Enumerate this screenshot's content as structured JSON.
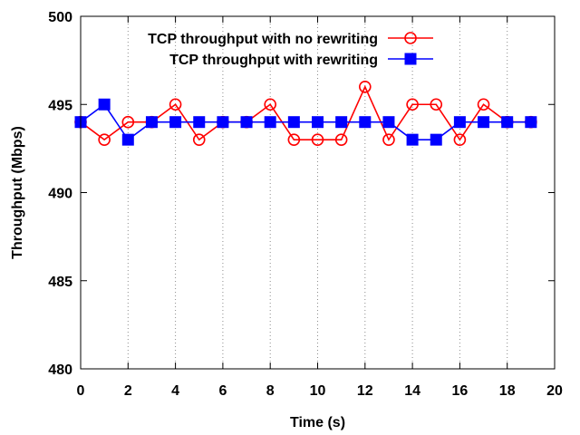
{
  "chart_data": {
    "type": "line",
    "title": "",
    "xlabel": "Time (s)",
    "ylabel": "Throughput (Mbps)",
    "xlim": [
      0,
      20
    ],
    "ylim": [
      480,
      500
    ],
    "xticks": [
      "0",
      "2",
      "4",
      "6",
      "8",
      "10",
      "12",
      "14",
      "16",
      "18",
      "20"
    ],
    "yticks": [
      "480",
      "485",
      "490",
      "495",
      "500"
    ],
    "grid": "vertical dotted",
    "legend_position": "top-right",
    "series": [
      {
        "name": "TCP throughput with no rewriting",
        "color": "#ff0000",
        "marker": "circle-open",
        "x": [
          0,
          1,
          2,
          3,
          4,
          5,
          6,
          7,
          8,
          9,
          10,
          11,
          12,
          13,
          14,
          15,
          16,
          17,
          18,
          19
        ],
        "y": [
          494,
          493,
          494,
          494,
          495,
          493,
          494,
          494,
          495,
          493,
          493,
          493,
          496,
          493,
          495,
          495,
          493,
          495,
          494,
          494
        ]
      },
      {
        "name": "TCP throughput with rewriting",
        "color": "#0000ff",
        "marker": "square-filled",
        "x": [
          0,
          1,
          2,
          3,
          4,
          5,
          6,
          7,
          8,
          9,
          10,
          11,
          12,
          13,
          14,
          15,
          16,
          17,
          18,
          19
        ],
        "y": [
          494,
          495,
          493,
          494,
          494,
          494,
          494,
          494,
          494,
          494,
          494,
          494,
          494,
          494,
          493,
          493,
          494,
          494,
          494,
          494
        ]
      }
    ]
  }
}
